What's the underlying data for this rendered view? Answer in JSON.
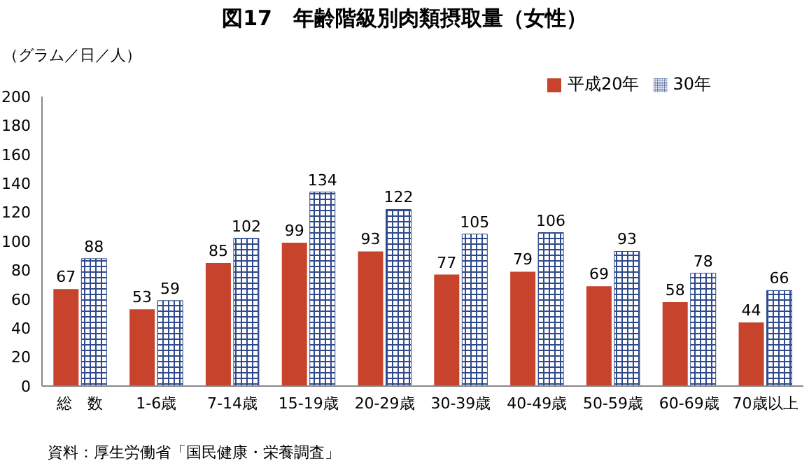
{
  "chart_data": {
    "type": "bar",
    "title": "図17　年齢階級別肉類摂取量（女性）",
    "ylabel": "（グラム／日／人）",
    "categories": [
      "総　数",
      "1-6歳",
      "7-14歳",
      "15-19歳",
      "20-29歳",
      "30-39歳",
      "40-49歳",
      "50-59歳",
      "60-69歳",
      "70歳以上"
    ],
    "series": [
      {
        "name": "平成20年",
        "color": "#c8432b",
        "values": [
          67,
          53,
          85,
          99,
          93,
          77,
          79,
          69,
          58,
          44
        ]
      },
      {
        "name": "30年",
        "color": "#2e4a8c",
        "values": [
          88,
          59,
          102,
          134,
          122,
          105,
          106,
          93,
          78,
          66
        ]
      }
    ],
    "ylim": [
      0,
      200
    ],
    "yticks": [
      0,
      20,
      40,
      60,
      80,
      100,
      120,
      140,
      160,
      180,
      200
    ],
    "grid": false,
    "legend": "top right",
    "data_labels": true,
    "annotations": [
      "資料：厚生労働省「国民健康・栄養調査」"
    ]
  }
}
